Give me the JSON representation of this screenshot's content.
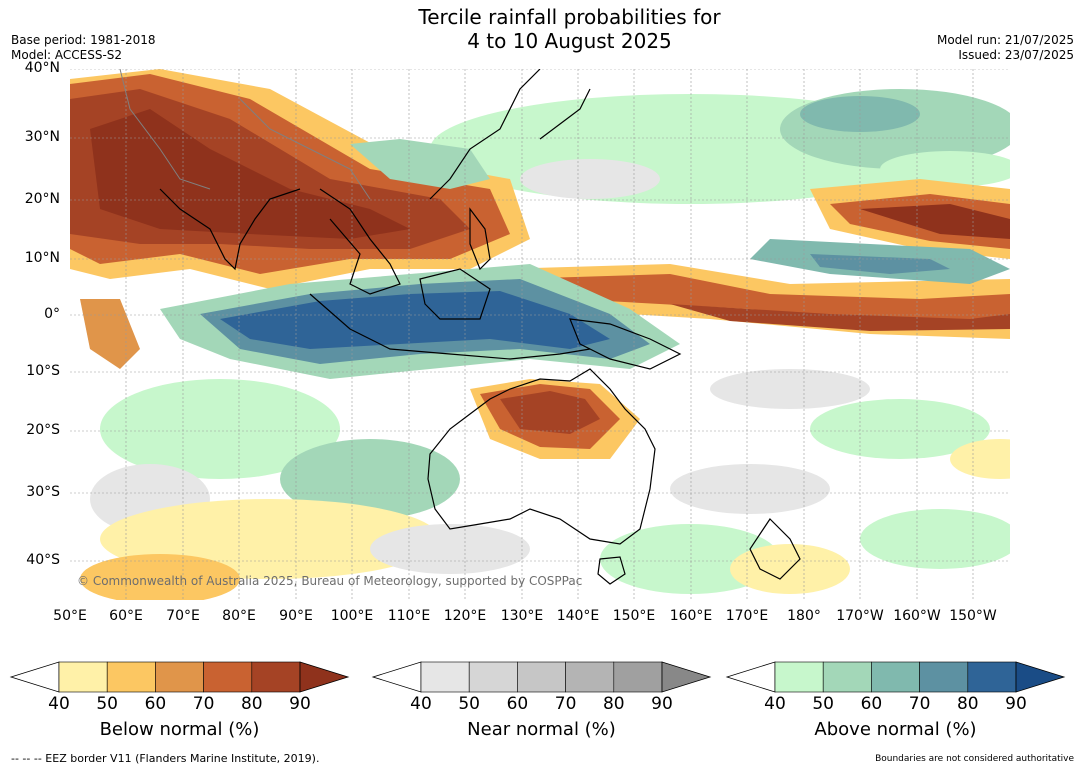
{
  "title_line1": "Tercile rainfall probabilities for",
  "title_line2": "4 to 10 August 2025",
  "base_period": "Base period: 1981-2018",
  "model": "Model: ACCESS-S2",
  "model_run": "Model run: 21/07/2025",
  "issued": "Issued: 23/07/2025",
  "lat_labels": [
    "40°N",
    "30°N",
    "20°N",
    "10°N",
    "0°",
    "10°S",
    "20°S",
    "30°S",
    "40°S"
  ],
  "lon_labels": [
    "50°E",
    "60°E",
    "70°E",
    "80°E",
    "90°E",
    "100°E",
    "110°E",
    "120°E",
    "130°E",
    "140°E",
    "150°E",
    "160°E",
    "170°E",
    "180°",
    "170°W",
    "160°W",
    "150°W"
  ],
  "credit": "© Commonwealth of Australia 2025, Bureau of Meteorology, supported by COSPPac",
  "colorbars": [
    {
      "title": "Below normal (%)",
      "ticks": [
        "40",
        "50",
        "60",
        "70",
        "80",
        "90"
      ],
      "colors": [
        "#fff1a8",
        "#fcc762",
        "#e0954a",
        "#c96231",
        "#a54325",
        "#8f321c"
      ]
    },
    {
      "title": "Near normal (%)",
      "ticks": [
        "40",
        "50",
        "60",
        "70",
        "80",
        "90"
      ],
      "colors": [
        "#e6e6e6",
        "#d6d6d6",
        "#c6c6c6",
        "#b4b4b4",
        "#a0a0a0",
        "#888888"
      ]
    },
    {
      "title": "Above normal (%)",
      "ticks": [
        "40",
        "50",
        "60",
        "70",
        "80",
        "90"
      ],
      "colors": [
        "#c7f7cc",
        "#a3d7b8",
        "#80b9ae",
        "#5d91a2",
        "#2f6497",
        "#1a4c86"
      ]
    }
  ],
  "footer_left": "--  --  -- EEZ border V11 (Flanders Marine Institute, 2019).",
  "footer_right": "Boundaries are not considered authoritative"
}
